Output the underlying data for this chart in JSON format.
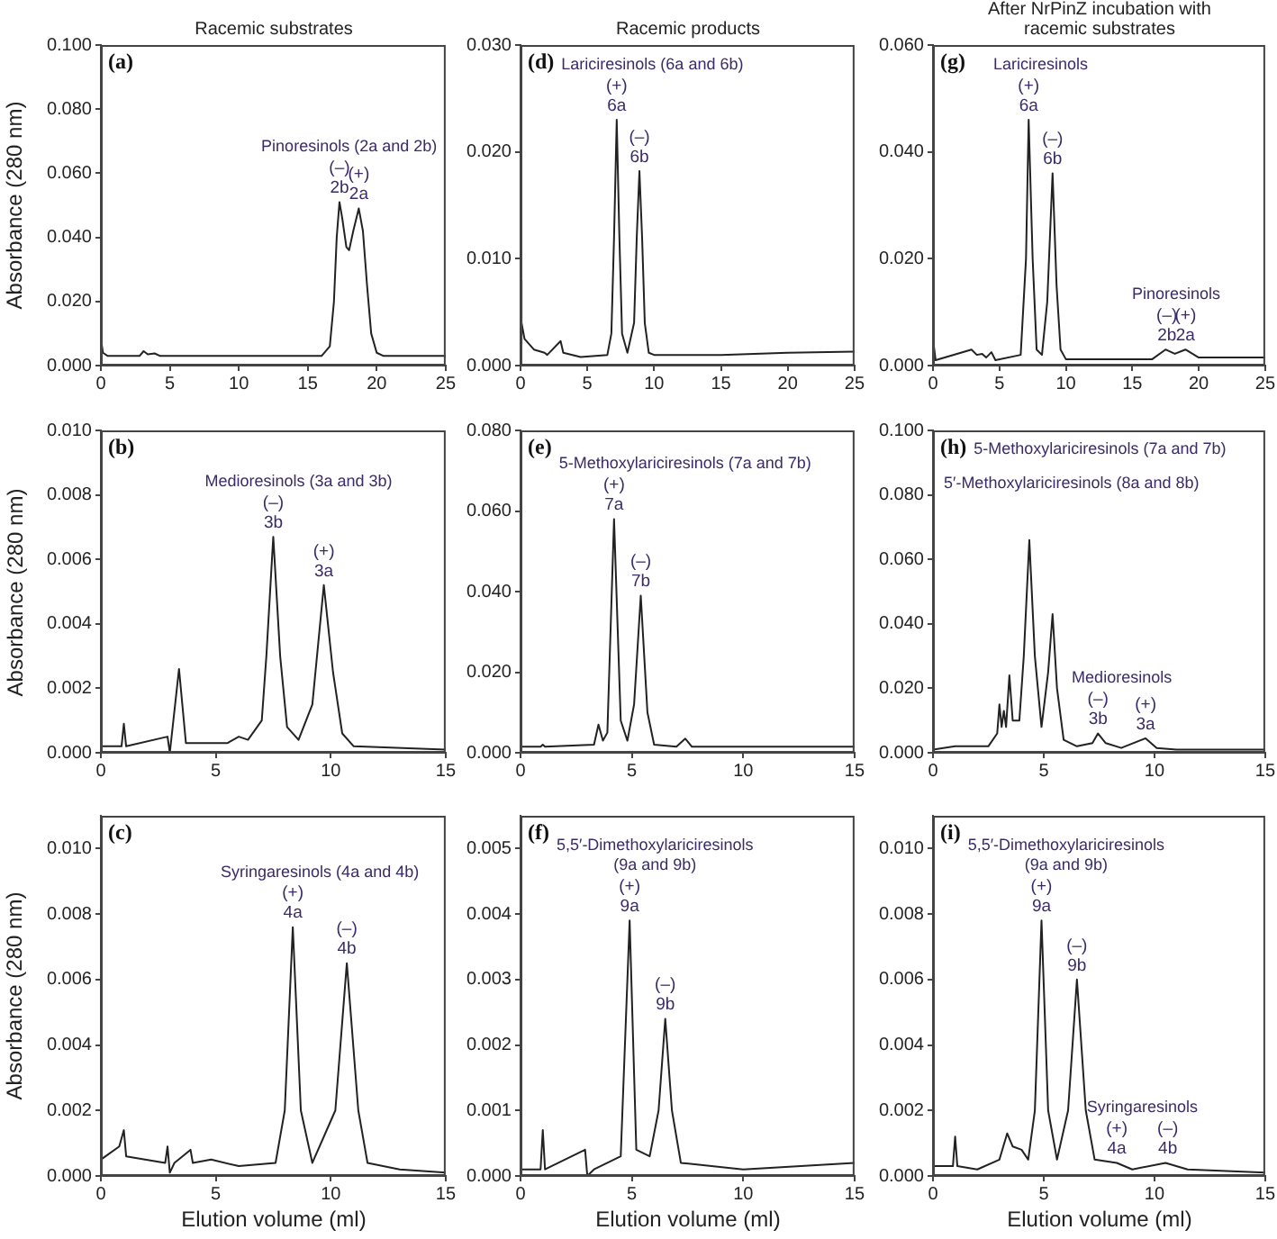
{
  "chart_data": [
    {
      "type": "line",
      "title": "Racemic substrates",
      "ylabel": "Absorbance (280 nm)",
      "x": [
        0,
        0.05,
        0.15,
        0.5,
        2.8,
        3.1,
        3.4,
        3.9,
        4.3,
        16,
        16.6,
        16.9,
        17.1,
        17.3,
        17.5,
        17.8,
        18.0,
        18.3,
        18.7,
        19.0,
        19.3,
        19.6,
        20.0,
        20.5,
        25
      ],
      "series": [
        {
          "color": "#222222",
          "values": [
            0.003,
            0.007,
            0.004,
            0.003,
            0.003,
            0.0045,
            0.0035,
            0.0038,
            0.003,
            0.003,
            0.006,
            0.02,
            0.04,
            0.051,
            0.046,
            0.037,
            0.036,
            0.042,
            0.049,
            0.042,
            0.025,
            0.01,
            0.004,
            0.003,
            0.003
          ]
        }
      ],
      "xlim": [
        0,
        25
      ],
      "xticks": [
        0,
        5,
        10,
        15,
        20,
        25
      ],
      "ylim": [
        0,
        0.1
      ],
      "yticks": [
        {
          "value": 0,
          "label": "0.000"
        },
        {
          "value": 0.02,
          "label": "0.020"
        },
        {
          "value": 0.04,
          "label": "0.040"
        },
        {
          "value": 0.06,
          "label": "0.060"
        },
        {
          "value": 0.08,
          "label": "0.080"
        },
        {
          "value": 0.1,
          "label": "0.100"
        }
      ],
      "annotations": [
        "(a)",
        "Pinoresinols (2a and 2b)",
        {
          "text": "(–)\n2b",
          "x": 17.3,
          "y": 0.051
        },
        {
          "text": "(+)\n2a",
          "x": 18.7,
          "y": 0.049
        }
      ]
    },
    {
      "type": "line",
      "title": "Racemic products",
      "x": [
        0,
        0.05,
        0.1,
        0.3,
        1,
        1.8,
        2,
        3.0,
        3.2,
        4.5,
        6.5,
        6.8,
        7.0,
        7.2,
        7.4,
        7.6,
        8.0,
        8.5,
        8.7,
        8.9,
        9.1,
        9.3,
        9.6,
        10,
        15,
        20,
        25
      ],
      "series": [
        {
          "color": "#222222",
          "values": [
            0.002,
            0.008,
            0.004,
            0.0025,
            0.0015,
            0.0012,
            0.001,
            0.0023,
            0.0012,
            0.0008,
            0.001,
            0.003,
            0.012,
            0.023,
            0.012,
            0.003,
            0.0012,
            0.004,
            0.012,
            0.0182,
            0.012,
            0.004,
            0.0012,
            0.001,
            0.001,
            0.0012,
            0.0013
          ]
        }
      ],
      "xlim": [
        0,
        25
      ],
      "xticks": [
        0,
        5,
        10,
        15,
        20,
        25
      ],
      "ylim": [
        0,
        0.03
      ],
      "yticks": [
        {
          "value": 0,
          "label": "0.000"
        },
        {
          "value": 0.01,
          "label": "0.010"
        },
        {
          "value": 0.02,
          "label": "0.020"
        },
        {
          "value": 0.03,
          "label": "0.030"
        }
      ],
      "annotations": [
        "(d)",
        "Lariciresinols (6a and 6b)",
        {
          "text": "(+)\n6a",
          "x": 7.2,
          "y": 0.023
        },
        {
          "text": "(–)\n6b",
          "x": 8.9,
          "y": 0.0182
        }
      ]
    },
    {
      "type": "line",
      "title": "After NrPinZ incubation with racemic substrates",
      "x": [
        0,
        0.05,
        0.2,
        2.9,
        3.3,
        3.7,
        4.0,
        4.4,
        4.7,
        6.6,
        7.0,
        7.2,
        7.5,
        7.8,
        8.2,
        8.6,
        9.0,
        9.3,
        9.6,
        10,
        16.5,
        17.5,
        18.2,
        19,
        20,
        25
      ],
      "series": [
        {
          "color": "#222222",
          "values": [
            0.001,
            0.004,
            0.001,
            0.003,
            0.002,
            0.0022,
            0.0015,
            0.0025,
            0.001,
            0.002,
            0.02,
            0.046,
            0.02,
            0.003,
            0.002,
            0.012,
            0.036,
            0.015,
            0.003,
            0.0012,
            0.0012,
            0.003,
            0.0022,
            0.003,
            0.0015,
            0.0015
          ]
        }
      ],
      "xlim": [
        0,
        25
      ],
      "xticks": [
        0,
        5,
        10,
        15,
        20,
        25
      ],
      "ylim": [
        0,
        0.06
      ],
      "yticks": [
        {
          "value": 0,
          "label": "0.000"
        },
        {
          "value": 0.02,
          "label": "0.020"
        },
        {
          "value": 0.04,
          "label": "0.040"
        },
        {
          "value": 0.06,
          "label": "0.060"
        }
      ],
      "annotations": [
        "(g)",
        "Lariciresinols",
        {
          "text": "(+)\n6a",
          "x": 7.2,
          "y": 0.046
        },
        {
          "text": "(–)\n6b",
          "x": 9.0,
          "y": 0.036
        },
        "Pinoresinols",
        {
          "text": "(–)\n2b",
          "x": 17.6,
          "y": 0.003
        },
        {
          "text": "(+)\n2a",
          "x": 19.0,
          "y": 0.003
        }
      ]
    },
    {
      "type": "line",
      "ylabel": "Absorbance (280 nm)",
      "x": [
        0,
        0.9,
        1.0,
        1.1,
        2.9,
        3.0,
        3.4,
        3.7,
        5.5,
        6.0,
        6.4,
        7.0,
        7.2,
        7.5,
        7.8,
        8.1,
        8.6,
        9.2,
        9.7,
        10.1,
        10.5,
        11,
        15
      ],
      "series": [
        {
          "color": "#222222",
          "values": [
            0.0002,
            0.0002,
            0.0009,
            0.0002,
            0.0005,
            0.0,
            0.0026,
            0.0003,
            0.0003,
            0.0005,
            0.0004,
            0.001,
            0.003,
            0.0067,
            0.003,
            0.0008,
            0.0004,
            0.0015,
            0.0052,
            0.0025,
            0.0006,
            0.0002,
            0.0001
          ]
        }
      ],
      "xlim": [
        0,
        15
      ],
      "xticks": [
        0,
        5,
        10,
        15
      ],
      "ylim": [
        0,
        0.01
      ],
      "yticks": [
        {
          "value": 0,
          "label": "0.000"
        },
        {
          "value": 0.002,
          "label": "0.002"
        },
        {
          "value": 0.004,
          "label": "0.004"
        },
        {
          "value": 0.006,
          "label": "0.006"
        },
        {
          "value": 0.008,
          "label": "0.008"
        },
        {
          "value": 0.01,
          "label": "0.010"
        }
      ],
      "annotations": [
        "(b)",
        "Medioresinols (3a and 3b)",
        {
          "text": "(–)\n3b",
          "x": 7.5,
          "y": 0.0067
        },
        {
          "text": "(+)\n3a",
          "x": 9.7,
          "y": 0.0052
        }
      ]
    },
    {
      "type": "line",
      "x": [
        0,
        0.9,
        1.0,
        1.1,
        3.3,
        3.5,
        3.7,
        3.9,
        4.2,
        4.5,
        4.8,
        5.1,
        5.4,
        5.7,
        6.0,
        7.0,
        7.4,
        7.7,
        15
      ],
      "series": [
        {
          "color": "#222222",
          "values": [
            0.0015,
            0.0015,
            0.002,
            0.0015,
            0.002,
            0.007,
            0.003,
            0.005,
            0.058,
            0.008,
            0.003,
            0.012,
            0.039,
            0.01,
            0.002,
            0.0015,
            0.0035,
            0.0015,
            0.0015
          ]
        }
      ],
      "xlim": [
        0,
        15
      ],
      "xticks": [
        0,
        5,
        10,
        15
      ],
      "ylim": [
        0,
        0.08
      ],
      "yticks": [
        {
          "value": 0,
          "label": "0.000"
        },
        {
          "value": 0.02,
          "label": "0.020"
        },
        {
          "value": 0.04,
          "label": "0.040"
        },
        {
          "value": 0.06,
          "label": "0.060"
        },
        {
          "value": 0.08,
          "label": "0.080"
        }
      ],
      "annotations": [
        "(e)",
        "5-Methoxylariciresinols (7a and 7b)",
        {
          "text": "(+)\n7a",
          "x": 4.2,
          "y": 0.058
        },
        {
          "text": "(–)\n7b",
          "x": 5.4,
          "y": 0.039
        }
      ]
    },
    {
      "type": "line",
      "x": [
        0,
        1.0,
        2.5,
        2.9,
        3.0,
        3.1,
        3.2,
        3.3,
        3.45,
        3.6,
        3.9,
        4.1,
        4.35,
        4.6,
        4.9,
        5.2,
        5.4,
        5.6,
        5.9,
        6.5,
        7.2,
        7.45,
        7.8,
        8.5,
        9.6,
        10.1,
        11,
        15
      ],
      "series": [
        {
          "color": "#222222",
          "values": [
            0.001,
            0.002,
            0.002,
            0.006,
            0.015,
            0.008,
            0.013,
            0.008,
            0.024,
            0.01,
            0.01,
            0.03,
            0.066,
            0.03,
            0.008,
            0.025,
            0.043,
            0.02,
            0.004,
            0.002,
            0.003,
            0.006,
            0.003,
            0.0015,
            0.0045,
            0.0015,
            0.001,
            0.001
          ]
        }
      ],
      "xlim": [
        0,
        15
      ],
      "xticks": [
        0,
        5,
        10,
        15
      ],
      "ylim": [
        0,
        0.1
      ],
      "yticks": [
        {
          "value": 0,
          "label": "0.000"
        },
        {
          "value": 0.02,
          "label": "0.020"
        },
        {
          "value": 0.04,
          "label": "0.040"
        },
        {
          "value": 0.06,
          "label": "0.060"
        },
        {
          "value": 0.08,
          "label": "0.080"
        },
        {
          "value": 0.1,
          "label": "0.100"
        }
      ],
      "annotations": [
        "(h)",
        "5-Methoxylariciresinols (7a and 7b)",
        "5′-Methoxylariciresinols (8a and 8b)",
        "Medioresinols",
        {
          "text": "(–)\n3b",
          "x": 7.45,
          "y": 0.006
        },
        {
          "text": "(+)\n3a",
          "x": 9.6,
          "y": 0.0045
        }
      ]
    },
    {
      "type": "line",
      "ylabel": "Absorbance (280 nm)",
      "xlabel": "Elution volume (ml)",
      "x": [
        0,
        0.8,
        1.0,
        1.1,
        2.8,
        2.9,
        3.0,
        3.2,
        3.9,
        4.0,
        4.8,
        6,
        7.6,
        8.0,
        8.35,
        8.7,
        9.2,
        10.2,
        10.7,
        11.2,
        11.6,
        13,
        15
      ],
      "series": [
        {
          "color": "#222222",
          "values": [
            0.0005,
            0.0009,
            0.0014,
            0.0006,
            0.0004,
            0.0009,
            0.0001,
            0.0004,
            0.0008,
            0.0004,
            0.0005,
            0.0003,
            0.0004,
            0.002,
            0.0076,
            0.002,
            0.0004,
            0.002,
            0.0065,
            0.002,
            0.0004,
            0.0002,
            0.0001
          ]
        }
      ],
      "xlim": [
        0,
        15
      ],
      "xticks": [
        0,
        5,
        10,
        15
      ],
      "ylim": [
        0,
        0.011
      ],
      "yticks": [
        {
          "value": 0,
          "label": "0.000"
        },
        {
          "value": 0.002,
          "label": "0.002"
        },
        {
          "value": 0.004,
          "label": "0.004"
        },
        {
          "value": 0.006,
          "label": "0.006"
        },
        {
          "value": 0.008,
          "label": "0.008"
        },
        {
          "value": 0.01,
          "label": "0.010"
        }
      ],
      "annotations": [
        "(c)",
        "Syringaresinols (4a and 4b)",
        {
          "text": "(+)\n4a",
          "x": 8.35,
          "y": 0.0076
        },
        {
          "text": "(–)\n4b",
          "x": 10.7,
          "y": 0.0065
        }
      ]
    },
    {
      "type": "line",
      "xlabel": "Elution volume (ml)",
      "x": [
        0,
        0.9,
        1.0,
        1.1,
        2.9,
        3.0,
        3.3,
        4.5,
        4.9,
        5.2,
        5.8,
        6.2,
        6.5,
        6.8,
        7.2,
        10,
        15
      ],
      "series": [
        {
          "color": "#222222",
          "values": [
            0.0001,
            0.0001,
            0.0007,
            0.0001,
            0.0004,
            0.0,
            0.0001,
            0.0003,
            0.0039,
            0.0004,
            0.0003,
            0.001,
            0.0024,
            0.001,
            0.0002,
            0.0001,
            0.0002
          ]
        }
      ],
      "xlim": [
        0,
        15
      ],
      "xticks": [
        0,
        5,
        10,
        15
      ],
      "ylim": [
        0,
        0.0055
      ],
      "yticks": [
        {
          "value": 0,
          "label": "0.000"
        },
        {
          "value": 0.001,
          "label": "0.001"
        },
        {
          "value": 0.002,
          "label": "0.002"
        },
        {
          "value": 0.003,
          "label": "0.003"
        },
        {
          "value": 0.004,
          "label": "0.004"
        },
        {
          "value": 0.005,
          "label": "0.005"
        }
      ],
      "annotations": [
        "(f)",
        "5,5′-Dimethoxylariciresinols\n(9a and 9b)",
        {
          "text": "(+)\n9a",
          "x": 4.9,
          "y": 0.0039
        },
        {
          "text": "(–)\n9b",
          "x": 6.5,
          "y": 0.0024
        }
      ]
    },
    {
      "type": "line",
      "xlabel": "Elution volume (ml)",
      "x": [
        0,
        0.9,
        1.0,
        1.1,
        2.0,
        3.0,
        3.35,
        3.6,
        4.0,
        4.3,
        4.6,
        4.9,
        5.2,
        5.6,
        6.1,
        6.5,
        6.9,
        7.3,
        8.3,
        9,
        10.5,
        11.5,
        15
      ],
      "series": [
        {
          "color": "#222222",
          "values": [
            0.0003,
            0.0003,
            0.0012,
            0.0003,
            0.0002,
            0.0005,
            0.0013,
            0.0009,
            0.0008,
            0.0005,
            0.002,
            0.0078,
            0.002,
            0.0005,
            0.002,
            0.006,
            0.002,
            0.0005,
            0.0004,
            0.0002,
            0.0004,
            0.0002,
            0.0001
          ]
        }
      ],
      "xlim": [
        0,
        15
      ],
      "xticks": [
        0,
        5,
        10,
        15
      ],
      "ylim": [
        0,
        0.011
      ],
      "yticks": [
        {
          "value": 0,
          "label": "0.000"
        },
        {
          "value": 0.002,
          "label": "0.002"
        },
        {
          "value": 0.004,
          "label": "0.004"
        },
        {
          "value": 0.006,
          "label": "0.006"
        },
        {
          "value": 0.008,
          "label": "0.008"
        },
        {
          "value": 0.01,
          "label": "0.010"
        }
      ],
      "annotations": [
        "(i)",
        "5,5′-Dimethoxylariciresinols\n(9a and 9b)",
        {
          "text": "(+)\n9a",
          "x": 4.9,
          "y": 0.0078
        },
        {
          "text": "(–)\n9b",
          "x": 6.5,
          "y": 0.006
        },
        "Syringaresinols",
        {
          "text": "(+)\n4a",
          "x": 8.3,
          "y": 0.0004
        },
        {
          "text": "(–)\n4b",
          "x": 10.6,
          "y": 0.0004
        }
      ]
    }
  ]
}
